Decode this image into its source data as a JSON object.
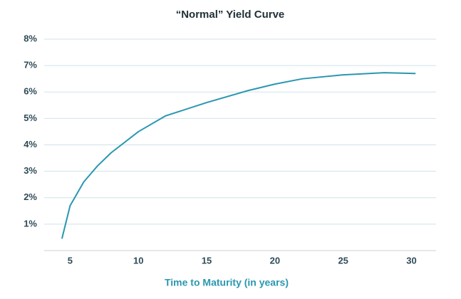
{
  "chart_data": {
    "type": "line",
    "title": "“Normal” Yield Curve",
    "x_label": "Time to Maturity (in years)",
    "series": [
      {
        "color": "#2a97b0",
        "x": [
          4.4,
          5,
          6,
          7,
          8,
          10,
          12,
          15,
          18,
          20,
          22,
          25,
          28,
          30.3
        ],
        "values": [
          0.45,
          1.7,
          2.6,
          3.2,
          3.7,
          4.5,
          5.1,
          5.6,
          6.05,
          6.3,
          6.5,
          6.65,
          6.73,
          6.7
        ]
      }
    ],
    "xlim": [
      3.1,
      31.8
    ],
    "xticks": [
      5,
      10,
      15,
      20,
      25,
      30
    ],
    "ylim": [
      0,
      8
    ],
    "yticks": [
      {
        "value": 1,
        "label": "1%"
      },
      {
        "value": 2,
        "label": "2%"
      },
      {
        "value": 3,
        "label": "3%"
      },
      {
        "value": 4,
        "label": "4%"
      },
      {
        "value": 5,
        "label": "5%"
      },
      {
        "value": 6,
        "label": "6%"
      },
      {
        "value": 7,
        "label": "7%"
      },
      {
        "value": 8,
        "label": "8%"
      }
    ],
    "grid": true
  }
}
